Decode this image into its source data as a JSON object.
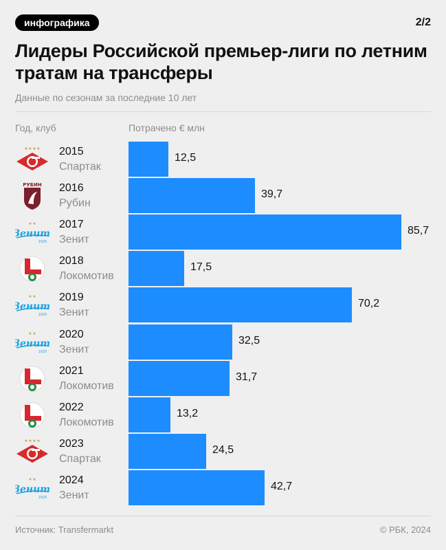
{
  "header": {
    "badge": "инфографика",
    "pager": "2/2",
    "title": "Лидеры Российской премьер-лиги по летним тратам на трансферы",
    "subtitle": "Данные по сезонам за последние 10 лет"
  },
  "columns": {
    "left": "Год, клуб",
    "right": "Потрачено € млн"
  },
  "footer": {
    "source": "Источник: Transfermarkt",
    "copyright": "© РБК, 2024"
  },
  "colors": {
    "bar": "#1d8cff",
    "background": "#efefef"
  },
  "chart_data": {
    "type": "bar",
    "orientation": "horizontal",
    "categories": [
      "2015",
      "2016",
      "2017",
      "2018",
      "2019",
      "2020",
      "2021",
      "2022",
      "2023",
      "2024"
    ],
    "clubs": [
      "Спартак",
      "Рубин",
      "Зенит",
      "Локомотив",
      "Зенит",
      "Зенит",
      "Локомотив",
      "Локомотив",
      "Спартак",
      "Зенит"
    ],
    "logos": [
      "spartak-logo",
      "rubin-logo",
      "zenit-logo",
      "lokomotiv-logo",
      "zenit-logo",
      "zenit-logo",
      "lokomotiv-logo",
      "lokomotiv-logo",
      "spartak-logo",
      "zenit-logo"
    ],
    "values": [
      12.5,
      39.7,
      85.7,
      17.5,
      70.2,
      32.5,
      31.7,
      13.2,
      24.5,
      42.7
    ],
    "value_labels": [
      "12,5",
      "39,7",
      "85,7",
      "17,5",
      "70,2",
      "32,5",
      "31,7",
      "13,2",
      "24,5",
      "42,7"
    ],
    "xlim": [
      0,
      85.7
    ],
    "grid": false,
    "legend": "none"
  }
}
